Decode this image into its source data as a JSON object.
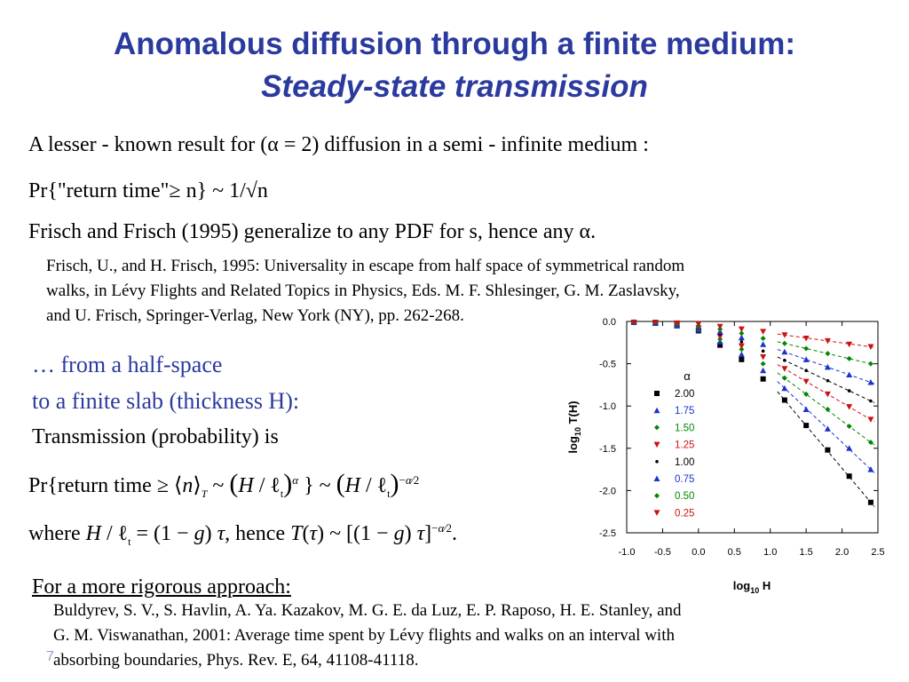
{
  "title": {
    "line1": "Anomalous diffusion through a finite medium:",
    "line2": "Steady-state transmission"
  },
  "text": {
    "lesser_known": "A lesser - known result for (α = 2) diffusion in a semi - infinite medium :",
    "pr_formula": "Pr{\"return time\"≥ n} ~ 1/√n",
    "frisch_generalize": "Frisch and Frisch (1995) generalize to any PDF for s, hence any α.",
    "ref1": [
      "Frisch, U., and H. Frisch, 1995: Universality in escape from half space of symmetrical random",
      "walks, in Lévy  Flights and Related Topics in Physics, Eds. M. F. Shlesinger, G. M. Zaslavsky,",
      "and U. Frisch, Springer-Verlag, New York (NY), pp. 262-268."
    ],
    "half_space": "… from a half-space",
    "finite_slab": "to a finite slab (thickness H):",
    "transmission_is": "Transmission (probability) is",
    "approach_heading": "For a more rigorous approach:",
    "ref2": [
      "Buldyrev, S. V., S. Havlin, A. Ya. Kazakov, M. G. E. da Luz, E. P. Raposo, H. E. Stanley, and",
      "G. M. Viswanathan, 2001: Average time spent by Lévy flights and walks on an interval with",
      "absorbing boundaries, Phys. Rev. E, 64, 41108-41118."
    ],
    "slide_number": "7"
  },
  "chart_data": {
    "type": "scatter",
    "xlabel": "log10 H",
    "ylabel": "log10 T(H)",
    "xlim": [
      -1.0,
      2.5
    ],
    "ylim": [
      -2.5,
      0.0
    ],
    "xticks": [
      "-1.0",
      "-0.5",
      "0.0",
      "0.5",
      "1.0",
      "1.5",
      "2.0",
      "2.5"
    ],
    "yticks": [
      "0.0",
      "-0.5",
      "-1.0",
      "-1.5",
      "-2.0",
      "-2.5"
    ],
    "legend_title": "α",
    "legend_position": "left-center",
    "x": [
      -0.9,
      -0.6,
      -0.3,
      0.0,
      0.3,
      0.6,
      0.9,
      1.2,
      1.5,
      1.8,
      2.1,
      2.4
    ],
    "series": [
      {
        "name": "2.00",
        "color": "#000000",
        "marker": "square",
        "values": [
          -0.01,
          -0.02,
          -0.05,
          -0.11,
          -0.28,
          -0.45,
          -0.68,
          -0.93,
          -1.23,
          -1.52,
          -1.83,
          -2.14
        ]
      },
      {
        "name": "1.75",
        "color": "#1a33cc",
        "marker": "triangle-up",
        "values": [
          -0.01,
          -0.02,
          -0.05,
          -0.1,
          -0.24,
          -0.39,
          -0.58,
          -0.79,
          -1.04,
          -1.27,
          -1.5,
          -1.75
        ]
      },
      {
        "name": "1.50",
        "color": "#008800",
        "marker": "diamond",
        "values": [
          -0.01,
          -0.02,
          -0.04,
          -0.09,
          -0.21,
          -0.33,
          -0.5,
          -0.67,
          -0.86,
          -1.04,
          -1.24,
          -1.43
        ]
      },
      {
        "name": "1.25",
        "color": "#cc1111",
        "marker": "triangle-down",
        "values": [
          -0.01,
          -0.02,
          -0.04,
          -0.08,
          -0.18,
          -0.29,
          -0.42,
          -0.56,
          -0.71,
          -0.86,
          -1.01,
          -1.16
        ]
      },
      {
        "name": "1.00",
        "color": "#000000",
        "marker": "dot",
        "values": [
          -0.01,
          -0.02,
          -0.04,
          -0.07,
          -0.15,
          -0.24,
          -0.35,
          -0.46,
          -0.58,
          -0.7,
          -0.82,
          -0.94
        ]
      },
      {
        "name": "0.75",
        "color": "#1a33cc",
        "marker": "triangle-up",
        "values": [
          -0.01,
          -0.02,
          -0.03,
          -0.06,
          -0.12,
          -0.19,
          -0.27,
          -0.36,
          -0.45,
          -0.54,
          -0.63,
          -0.72
        ]
      },
      {
        "name": "0.50",
        "color": "#008800",
        "marker": "diamond",
        "values": [
          -0.01,
          -0.01,
          -0.03,
          -0.05,
          -0.09,
          -0.14,
          -0.2,
          -0.26,
          -0.32,
          -0.38,
          -0.44,
          -0.5
        ]
      },
      {
        "name": "0.25",
        "color": "#cc1111",
        "marker": "triangle-down",
        "values": [
          -0.01,
          -0.01,
          -0.02,
          -0.03,
          -0.06,
          -0.09,
          -0.12,
          -0.16,
          -0.2,
          -0.23,
          -0.27,
          -0.3
        ]
      }
    ]
  },
  "colors": {
    "title": "#2b3a9e",
    "blue_text": "#2b3a9e"
  }
}
